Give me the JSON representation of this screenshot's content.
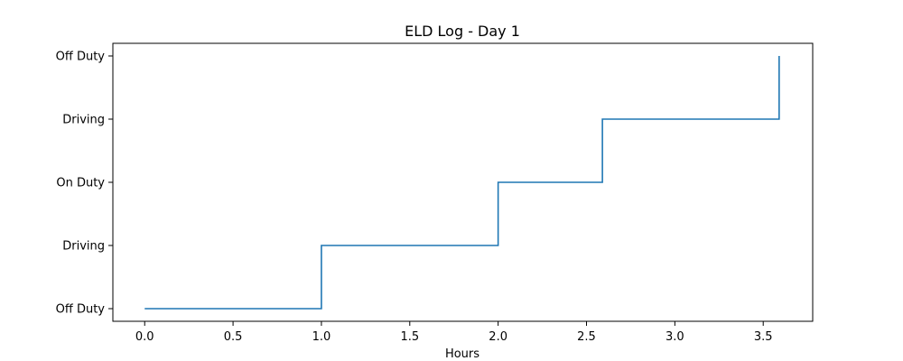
{
  "chart_data": {
    "type": "line",
    "drawstyle": "steps-post",
    "title": "ELD Log - Day 1",
    "xlabel": "Hours",
    "ylabel": "",
    "x_ticks": [
      "0.0",
      "0.5",
      "1.0",
      "1.5",
      "2.0",
      "2.5",
      "3.0",
      "3.5"
    ],
    "x_tick_values": [
      0.0,
      0.5,
      1.0,
      1.5,
      2.0,
      2.5,
      3.0,
      3.5
    ],
    "y_categories": [
      "Off Duty",
      "Driving",
      "On Duty",
      "Driving",
      "Off Duty"
    ],
    "y_category_values": [
      0,
      1,
      2,
      3,
      4
    ],
    "xlim": [
      -0.18,
      3.78
    ],
    "ylim": [
      -0.2,
      4.2
    ],
    "grid": false,
    "series": [
      {
        "color": "#1f77b4",
        "x": [
          0.0,
          1.0,
          2.0,
          2.59,
          3.59
        ],
        "y": [
          0,
          1,
          2,
          3,
          4
        ]
      }
    ]
  }
}
